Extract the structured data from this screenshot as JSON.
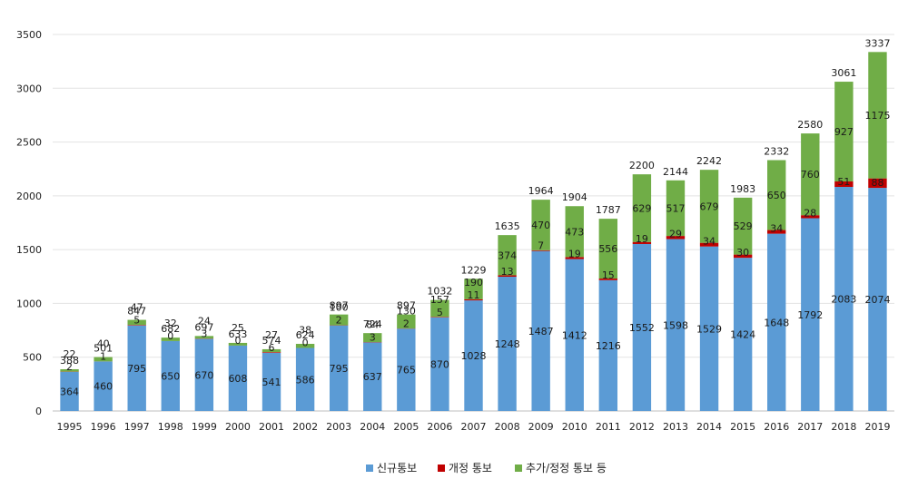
{
  "chart_data": {
    "type": "bar",
    "stacked": true,
    "title": "",
    "xlabel": "",
    "ylabel": "",
    "ylim": [
      0,
      3500
    ],
    "yticks": [
      0,
      500,
      1000,
      1500,
      2000,
      2500,
      3000,
      3500
    ],
    "grid": true,
    "legend_position": "bottom",
    "categories": [
      "1995",
      "1996",
      "1997",
      "1998",
      "1999",
      "2000",
      "2001",
      "2002",
      "2003",
      "2004",
      "2005",
      "2006",
      "2007",
      "2008",
      "2009",
      "2010",
      "2011",
      "2012",
      "2013",
      "2014",
      "2015",
      "2016",
      "2017",
      "2018",
      "2019"
    ],
    "series": [
      {
        "name": "신규통보",
        "color": "#5b9bd5",
        "values": [
          364,
          460,
          795,
          650,
          670,
          608,
          541,
          586,
          795,
          637,
          765,
          870,
          1028,
          1248,
          1487,
          1412,
          1216,
          1552,
          1598,
          1529,
          1424,
          1648,
          1792,
          2083,
          2074
        ]
      },
      {
        "name": "개정 통보",
        "color": "#c00000",
        "values": [
          2,
          1,
          5,
          0,
          3,
          0,
          6,
          0,
          2,
          3,
          2,
          5,
          11,
          13,
          7,
          19,
          15,
          19,
          29,
          34,
          30,
          34,
          28,
          51,
          88
        ]
      },
      {
        "name": "추가/정정 통보 등",
        "color": "#70ad47",
        "values": [
          22,
          40,
          47,
          32,
          24,
          25,
          27,
          38,
          100,
          84,
          130,
          157,
          190,
          374,
          470,
          473,
          556,
          629,
          517,
          679,
          529,
          650,
          760,
          927,
          1175
        ]
      }
    ],
    "totals": [
      388,
      501,
      847,
      682,
      697,
      633,
      574,
      624,
      897,
      724,
      897,
      1032,
      1229,
      1635,
      1964,
      1904,
      1787,
      2200,
      2144,
      2242,
      1983,
      2332,
      2580,
      3061,
      3337
    ]
  }
}
